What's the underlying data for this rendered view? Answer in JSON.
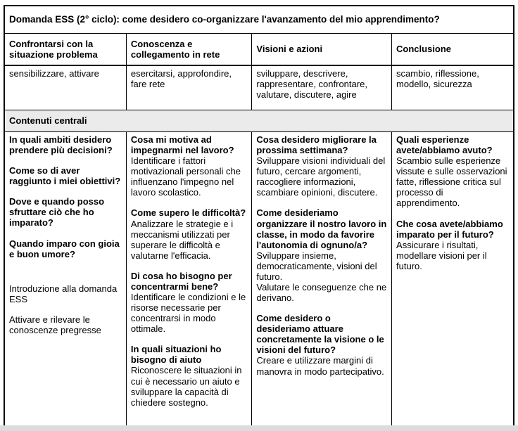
{
  "title": "Domanda ESS (2° ciclo): come desidero co-organizzare l'avanzamento del mio apprendimento?",
  "section_label": "Contenuti centrali",
  "phases": [
    {
      "header": "Confrontarsi con la situazione problema",
      "keywords": "sensibilizzare, attivare"
    },
    {
      "header": "Conoscenza e collegamento in rete",
      "keywords": "esercitarsi, approfondire, fare rete"
    },
    {
      "header": "Visioni e azioni",
      "keywords": "sviluppare, descrivere, rappresentare, confrontare, valutare, discutere, agire"
    },
    {
      "header": "Conclusione",
      "keywords": "scambio, riflessione, modello, sicurezza"
    }
  ],
  "contents": {
    "col1": {
      "questions": [
        "In quali ambiti desidero prendere più decisioni?",
        "Come so di aver raggiunto i miei obiettivi?",
        "Dove e quando posso sfruttare ciò che ho imparato?",
        "Quando imparo con gioia e buon umore?"
      ],
      "notes": [
        "Introduzione alla domanda ESS",
        "Attivare e rilevare le conoscenze pregresse"
      ]
    },
    "col2": {
      "blocks": [
        {
          "title": "Cosa mi motiva ad impegnarmi nel lavoro?",
          "body": "Identificare i fattori motivazionali personali che influenzano l'impegno nel lavoro scolastico."
        },
        {
          "title": "Come supero le difficoltà?",
          "body": "Analizzare le strategie e i meccanismi utilizzati per superare le difficoltà e valutarne l'efficacia."
        },
        {
          "title": "Di cosa ho bisogno per concentrarmi bene?",
          "body": "Identificare le condizioni e le risorse necessarie per concentrarsi in modo ottimale."
        },
        {
          "title": "In quali situazioni ho bisogno di aiuto",
          "body": "Riconoscere le situazioni in cui è necessario un aiuto e sviluppare la capacità di chiedere sostegno."
        }
      ]
    },
    "col3": {
      "blocks": [
        {
          "title": "Cosa desidero migliorare la prossima settimana?",
          "body": "Sviluppare visioni individuali del futuro, cercare argomenti, raccogliere informazioni, scambiare opinioni, discutere."
        },
        {
          "title": "Come desideriamo organizzare il nostro lavoro in classe, in modo da favorire l'autonomia di ognuno/a?",
          "body": "Sviluppare insieme, democraticamente, visioni del futuro.\nValutare le conseguenze che ne derivano."
        },
        {
          "title": "Come desidero o desideriamo attuare concretamente la visione o le visioni del futuro?",
          "body": "Creare e utilizzare margini di manovra in modo partecipativo."
        }
      ]
    },
    "col4": {
      "blocks": [
        {
          "title": "Quali esperienze avete/abbiamo avuto?",
          "body": "Scambio sulle esperienze vissute e sulle osservazioni fatte, riflessione critica sul processo di apprendimento."
        },
        {
          "title": "Che cosa avete/abbiamo imparato per il futuro?",
          "body": "Assicurare i risultati, modellare visioni per il futuro."
        }
      ]
    }
  }
}
